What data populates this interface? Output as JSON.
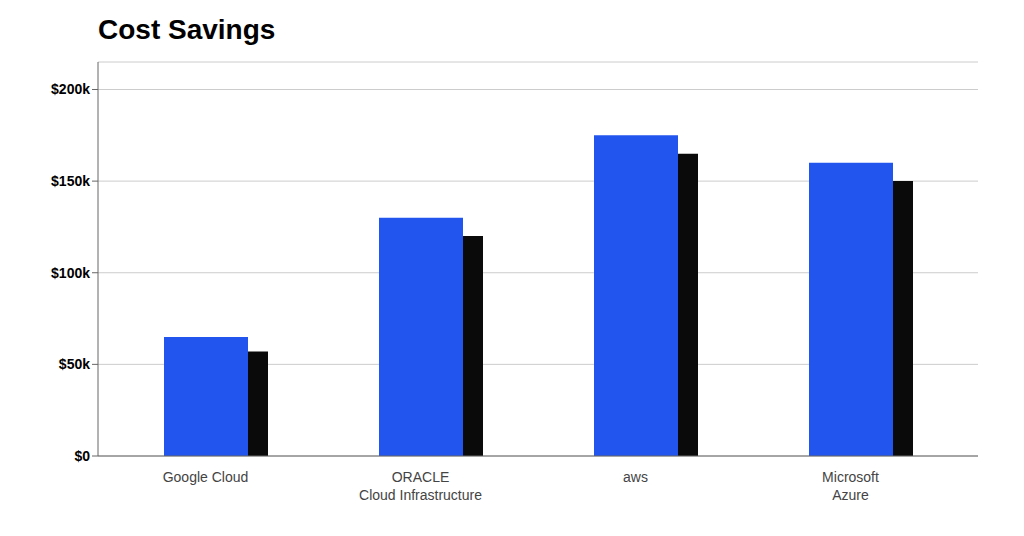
{
  "chart_data": {
    "type": "bar",
    "title": "Cost Savings",
    "categories": [
      "Google Cloud",
      "ORACLE\nCloud Infrastructure",
      "aws",
      "Microsoft\nAzure"
    ],
    "series": [
      {
        "color": "#0a0a0a",
        "values": [
          57000,
          120000,
          165000,
          150000
        ]
      },
      {
        "color": "#2255ee",
        "values": [
          65000,
          130000,
          175000,
          160000
        ]
      }
    ],
    "ylim": [
      0,
      215000
    ],
    "yticks": [
      {
        "value": 0,
        "label": "$0"
      },
      {
        "value": 50000,
        "label": "$50k"
      },
      {
        "value": 100000,
        "label": "$100k"
      },
      {
        "value": 150000,
        "label": "$150k"
      },
      {
        "value": 200000,
        "label": "$200k"
      }
    ],
    "grid": true
  }
}
